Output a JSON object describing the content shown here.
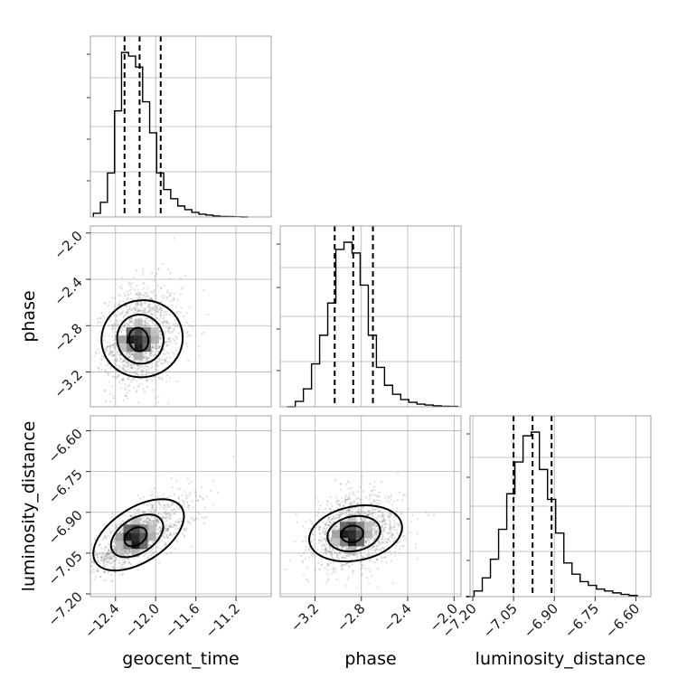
{
  "chart_data": {
    "type": "corner",
    "parameters": [
      "geocent_time",
      "phase",
      "luminosity_distance"
    ],
    "ranges": {
      "geocent_time": [
        -12.65,
        -10.85
      ],
      "phase": [
        -3.5,
        -1.94
      ],
      "luminosity_distance": [
        -7.21,
        -6.545
      ]
    },
    "ticks": {
      "geocent_time": {
        "values": [
          -12.4,
          -12.0,
          -11.6,
          -11.2
        ],
        "labels": [
          "−12.4",
          "−12.0",
          "−11.6",
          "−11.2"
        ]
      },
      "phase": {
        "values": [
          -3.2,
          -2.8,
          -2.4,
          -2.0
        ],
        "labels": [
          "−3.2",
          "−2.8",
          "−2.4",
          "−2.0"
        ]
      },
      "luminosity_distance": {
        "values": [
          -7.2,
          -7.05,
          -6.9,
          -6.75,
          -6.6
        ],
        "labels": [
          "−7.20",
          "−7.05",
          "−6.90",
          "−6.75",
          "−6.60"
        ]
      }
    },
    "quantiles": {
      "geocent_time": [
        -12.31,
        -12.16,
        -11.95
      ],
      "phase": [
        -3.03,
        -2.87,
        -2.7
      ],
      "luminosity_distance": [
        -7.05,
        -6.98,
        -6.91
      ]
    },
    "histograms": {
      "geocent_time": {
        "bins": [
          -12.62,
          -12.55,
          -12.48,
          -12.41,
          -12.34,
          -12.27,
          -12.2,
          -12.13,
          -12.06,
          -11.99,
          -11.92,
          -11.85,
          -11.78,
          -11.71,
          -11.64,
          -11.57,
          -11.5,
          -11.43,
          -11.36,
          -11.29,
          -11.22,
          -11.15,
          -11.08
        ],
        "counts": [
          2,
          8,
          24,
          58,
          90,
          88,
          82,
          63,
          46,
          24,
          15,
          10,
          6,
          4,
          2.5,
          1.5,
          1,
          0.5,
          0.3,
          0.2,
          0.1,
          0
        ]
      },
      "phase": {
        "bins": [
          -3.44,
          -3.37,
          -3.3,
          -3.23,
          -3.16,
          -3.09,
          -3.02,
          -2.95,
          -2.88,
          -2.81,
          -2.74,
          -2.67,
          -2.6,
          -2.53,
          -2.46,
          -2.39,
          -2.32,
          -2.25,
          -2.18,
          -2.11,
          -2.04,
          -1.97
        ],
        "counts": [
          0,
          3,
          10,
          24,
          40,
          58,
          88,
          92,
          86,
          68,
          40,
          22,
          12,
          7,
          4,
          2.5,
          1.5,
          1,
          0.5,
          0.3,
          0.2
        ]
      },
      "luminosity_distance": {
        "bins": [
          -7.225,
          -7.195,
          -7.165,
          -7.135,
          -7.105,
          -7.075,
          -7.045,
          -7.015,
          -6.985,
          -6.955,
          -6.925,
          -6.895,
          -6.865,
          -6.835,
          -6.805,
          -6.775,
          -6.745,
          -6.715,
          -6.685,
          -6.655,
          -6.625,
          -6.595
        ],
        "counts": [
          0,
          3,
          10,
          20,
          36,
          55,
          72,
          86,
          88,
          68,
          52,
          34,
          18,
          12,
          8,
          6,
          4,
          3,
          2,
          1.2,
          0.6
        ]
      }
    },
    "density_contours": {
      "geocent_time_vs_phase": {
        "center": [
          -12.17,
          -2.92
        ],
        "sigma": [
          0.16,
          0.2
        ],
        "correlation": 0.15
      },
      "geocent_time_vs_luminosity_distance": {
        "center": [
          -12.2,
          -6.99
        ],
        "sigma": [
          0.2,
          0.06
        ],
        "correlation": 0.7
      },
      "phase_vs_luminosity_distance": {
        "center": [
          -2.88,
          -6.98
        ],
        "sigma": [
          0.16,
          0.06
        ],
        "correlation": 0.2
      }
    },
    "grid": true,
    "style": {
      "line": "#000000",
      "points": "#808080",
      "grid": "#b0b0b0",
      "frame": "#a0a0a0"
    }
  }
}
